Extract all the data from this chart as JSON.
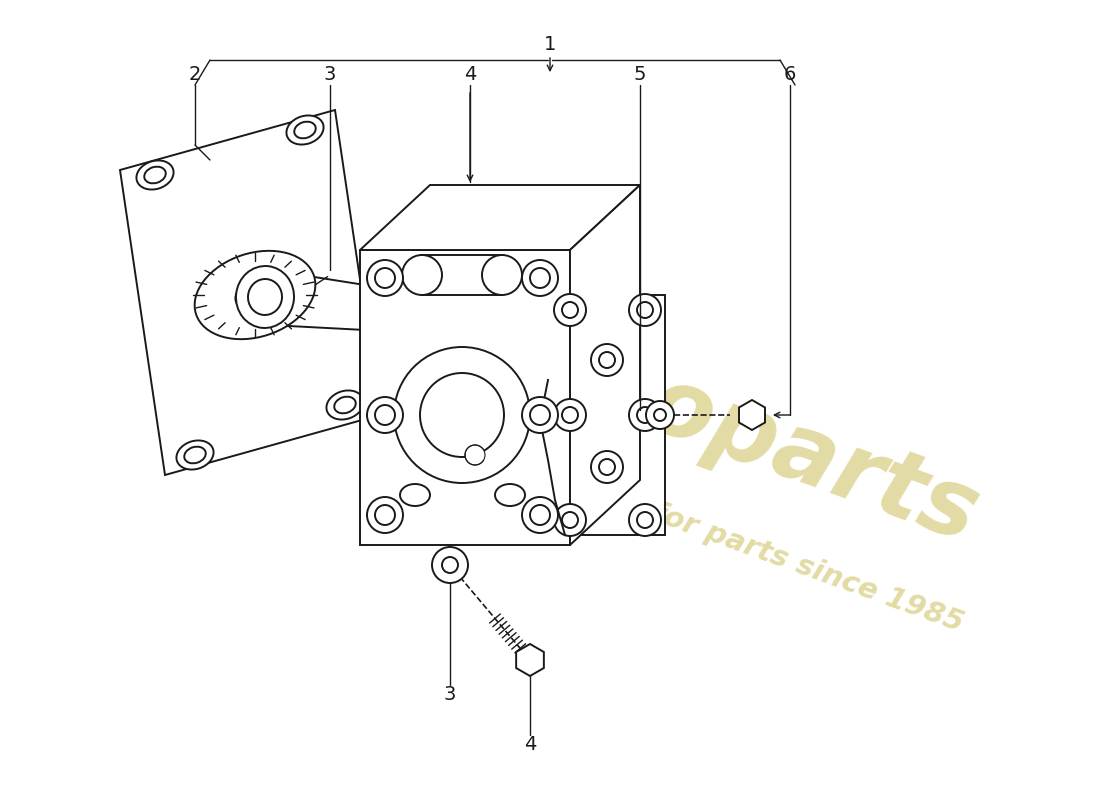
{
  "background_color": "#ffffff",
  "line_color": "#1a1a1a",
  "watermark_color1": "#c8b84a",
  "watermark_color2": "#c8b84a",
  "figsize": [
    11.0,
    8.0
  ],
  "dpi": 100,
  "label_fontsize": 14
}
